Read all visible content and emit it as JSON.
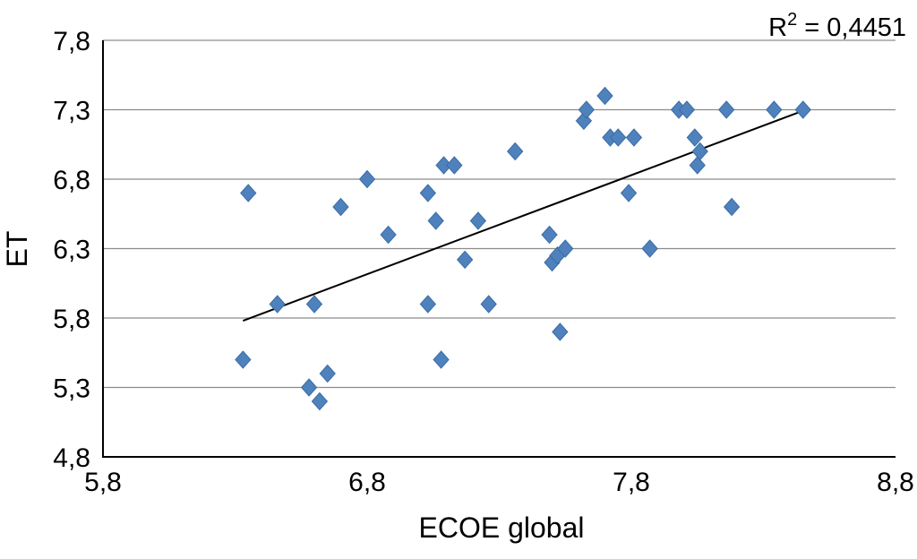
{
  "chart_data": {
    "type": "scatter",
    "title": "",
    "xlabel": "ECOE global",
    "ylabel": "ET",
    "xlim": [
      5.8,
      8.8
    ],
    "ylim": [
      4.8,
      7.8
    ],
    "xticks": [
      5.8,
      6.8,
      7.8,
      8.8
    ],
    "xtick_labels": [
      "5,8",
      "6,8",
      "7,8",
      "8,8"
    ],
    "yticks": [
      4.8,
      5.3,
      5.8,
      6.3,
      6.8,
      7.3,
      7.8
    ],
    "ytick_labels": [
      "4,8",
      "5,3",
      "5,8",
      "6,3",
      "6,8",
      "7,3",
      "7,8"
    ],
    "grid": "horizontal",
    "legend": "none",
    "marker": "diamond",
    "marker_color": "#4f81bd",
    "trendline_color": "#000000",
    "annotation": {
      "base": "R",
      "sup": "2",
      "rest": " = 0,4451"
    },
    "points": [
      [
        6.35,
        6.7
      ],
      [
        6.33,
        5.5
      ],
      [
        6.46,
        5.9
      ],
      [
        6.58,
        5.3
      ],
      [
        6.6,
        5.9
      ],
      [
        6.62,
        5.2
      ],
      [
        6.65,
        5.4
      ],
      [
        6.7,
        6.6
      ],
      [
        6.8,
        6.8
      ],
      [
        6.88,
        6.4
      ],
      [
        7.03,
        5.9
      ],
      [
        7.03,
        6.7
      ],
      [
        7.06,
        6.5
      ],
      [
        7.08,
        5.5
      ],
      [
        7.09,
        6.9
      ],
      [
        7.13,
        6.9
      ],
      [
        7.17,
        6.22
      ],
      [
        7.22,
        6.5
      ],
      [
        7.26,
        5.9
      ],
      [
        7.36,
        7.0
      ],
      [
        7.49,
        6.4
      ],
      [
        7.5,
        6.2
      ],
      [
        7.52,
        6.25
      ],
      [
        7.53,
        5.7
      ],
      [
        7.55,
        6.3
      ],
      [
        7.62,
        7.22
      ],
      [
        7.63,
        7.3
      ],
      [
        7.7,
        7.4
      ],
      [
        7.72,
        7.1
      ],
      [
        7.75,
        7.1
      ],
      [
        7.79,
        6.7
      ],
      [
        7.81,
        7.1
      ],
      [
        7.87,
        6.3
      ],
      [
        7.98,
        7.3
      ],
      [
        8.01,
        7.3
      ],
      [
        8.04,
        7.1
      ],
      [
        8.05,
        6.9
      ],
      [
        8.06,
        7.0
      ],
      [
        8.16,
        7.3
      ],
      [
        8.18,
        6.6
      ],
      [
        8.34,
        7.3
      ],
      [
        8.45,
        7.3
      ]
    ],
    "trendline": {
      "x1": 6.33,
      "y1": 5.78,
      "x2": 8.46,
      "y2": 7.3
    }
  }
}
